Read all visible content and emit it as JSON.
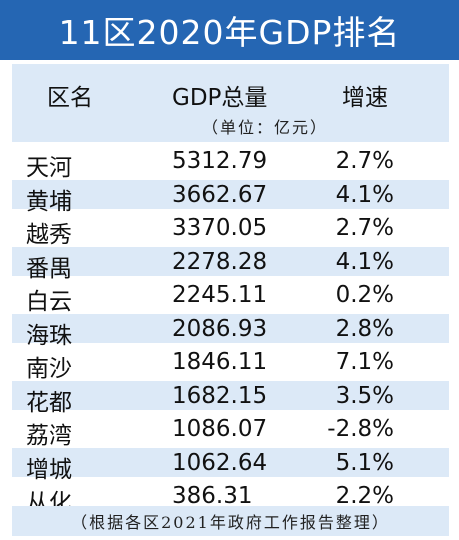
{
  "title": "11区2020年GDP排名",
  "header": {
    "region": "区名",
    "gdp": "GDP总量",
    "growth": "增速",
    "unit": "（单位：亿元）"
  },
  "rows": [
    {
      "region": "天河",
      "gdp": "5312.79",
      "growth": "2.7%"
    },
    {
      "region": "黄埔",
      "gdp": "3662.67",
      "growth": "4.1%"
    },
    {
      "region": "越秀",
      "gdp": "3370.05",
      "growth": "2.7%"
    },
    {
      "region": "番禺",
      "gdp": "2278.28",
      "growth": "4.1%"
    },
    {
      "region": "白云",
      "gdp": "2245.11",
      "growth": "0.2%"
    },
    {
      "region": "海珠",
      "gdp": "2086.93",
      "growth": "2.8%"
    },
    {
      "region": "南沙",
      "gdp": "1846.11",
      "growth": "7.1%"
    },
    {
      "region": "花都",
      "gdp": "1682.15",
      "growth": "3.5%"
    },
    {
      "region": "荔湾",
      "gdp": "1086.07",
      "growth": "-2.8%"
    },
    {
      "region": "增城",
      "gdp": "1062.64",
      "growth": "5.1%"
    },
    {
      "region": "从化",
      "gdp": "386.31",
      "growth": "2.2%"
    }
  ],
  "footer": "（根据各区2021年政府工作报告整理）",
  "colors": {
    "title_bg": "#2566b3",
    "band": "#dce9f7"
  }
}
